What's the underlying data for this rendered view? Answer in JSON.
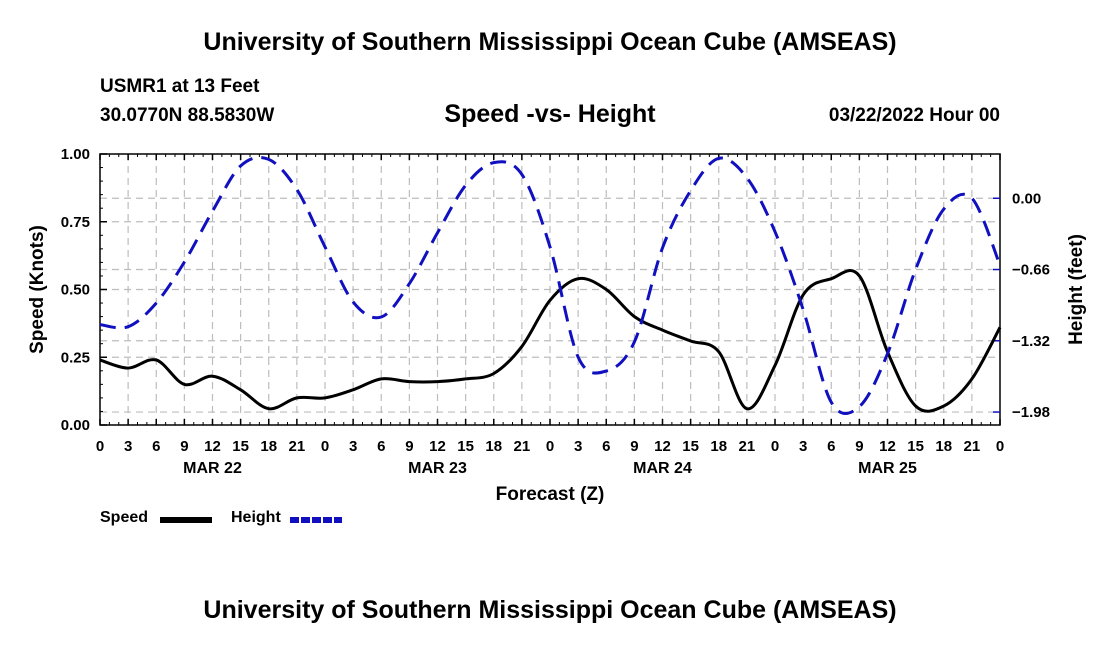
{
  "header": {
    "title": "University of Southern Mississippi Ocean Cube (AMSEAS)",
    "station": "USMR1 at 13 Feet",
    "coords": "30.0770N  88.5830W",
    "datetime": "03/22/2022 Hour 00"
  },
  "footer": {
    "title": "University of Southern Mississippi Ocean Cube (AMSEAS)"
  },
  "chart_data": {
    "type": "line",
    "title": "Speed -vs- Height",
    "xlabel": "Forecast (Z)",
    "ylabel_left": "Speed (Knots)",
    "ylabel_right": "Height (feet)",
    "x_unit": "forecast hour",
    "xlim": [
      0,
      96
    ],
    "ylim_left": [
      0,
      1.0
    ],
    "ylim_right": [
      -2.1,
      0.41
    ],
    "grid": true,
    "x_tick_labels": [
      "0",
      "3",
      "6",
      "9",
      "12",
      "15",
      "18",
      "21",
      "0",
      "3",
      "6",
      "9",
      "12",
      "15",
      "18",
      "21",
      "0",
      "3",
      "6",
      "9",
      "12",
      "15",
      "18",
      "21",
      "0",
      "3",
      "6",
      "9",
      "12",
      "15",
      "18",
      "21",
      "0"
    ],
    "date_labels": [
      {
        "hour": 12,
        "label": "MAR 22"
      },
      {
        "hour": 36,
        "label": "MAR 23"
      },
      {
        "hour": 60,
        "label": "MAR 24"
      },
      {
        "hour": 84,
        "label": "MAR 25"
      }
    ],
    "y_left_ticks": [
      "0.00",
      "0.25",
      "0.50",
      "0.75",
      "1.00"
    ],
    "y_right_ticks": [
      {
        "value": 0.0,
        "label": "0.00"
      },
      {
        "value": -0.66,
        "label": "−0.66"
      },
      {
        "value": -1.32,
        "label": "−1.32"
      },
      {
        "value": -1.98,
        "label": "−1.98"
      }
    ],
    "series": [
      {
        "name": "Speed",
        "axis": "left",
        "color": "#000000",
        "dash": "solid",
        "x": [
          0,
          3,
          6,
          9,
          12,
          15,
          18,
          21,
          24,
          27,
          30,
          33,
          36,
          39,
          42,
          45,
          48,
          51,
          54,
          57,
          60,
          63,
          66,
          69,
          72,
          75,
          78,
          81,
          84,
          87,
          90,
          93,
          96
        ],
        "values": [
          0.24,
          0.21,
          0.24,
          0.15,
          0.18,
          0.13,
          0.06,
          0.1,
          0.1,
          0.13,
          0.17,
          0.16,
          0.16,
          0.17,
          0.19,
          0.29,
          0.46,
          0.54,
          0.5,
          0.4,
          0.35,
          0.31,
          0.27,
          0.06,
          0.22,
          0.48,
          0.54,
          0.55,
          0.27,
          0.07,
          0.07,
          0.17,
          0.36
        ]
      },
      {
        "name": "Height",
        "axis": "right",
        "color": "#1010c0",
        "dash": "dashed",
        "x": [
          0,
          3,
          6,
          9,
          12,
          15,
          18,
          21,
          24,
          27,
          30,
          33,
          36,
          39,
          42,
          45,
          48,
          51,
          54,
          57,
          60,
          63,
          66,
          69,
          72,
          75,
          78,
          81,
          84,
          87,
          90,
          93,
          96
        ],
        "values": [
          -1.17,
          -1.19,
          -0.97,
          -0.59,
          -0.12,
          0.3,
          0.36,
          0.08,
          -0.45,
          -0.96,
          -1.1,
          -0.79,
          -0.32,
          0.12,
          0.33,
          0.22,
          -0.45,
          -1.47,
          -1.6,
          -1.33,
          -0.46,
          0.07,
          0.37,
          0.19,
          -0.31,
          -1.03,
          -1.89,
          -1.93,
          -1.44,
          -0.66,
          -0.1,
          0.0,
          -0.62
        ]
      }
    ],
    "legend": [
      {
        "label": "Speed"
      },
      {
        "label": "Height"
      }
    ]
  }
}
